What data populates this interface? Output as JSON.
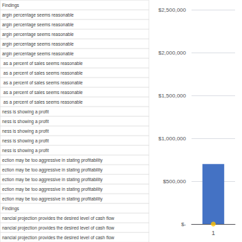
{
  "chart_data": {
    "type": "bar",
    "categories": [
      "1"
    ],
    "series": [
      {
        "type": "bar",
        "color": "#4472C4",
        "values": [
          700000
        ]
      },
      {
        "type": "scatter",
        "color": "#FFC000",
        "values": [
          0
        ]
      }
    ],
    "ylim": [
      0,
      2500000
    ],
    "yticks": [
      {
        "value": 0,
        "label": "$-"
      },
      {
        "value": 500000,
        "label": "$500,000"
      },
      {
        "value": 1000000,
        "label": "$1,000,000"
      },
      {
        "value": 1500000,
        "label": "$1,500,000"
      },
      {
        "value": 2000000,
        "label": "$2,000,000"
      },
      {
        "value": 2500000,
        "label": "$2,500,000"
      }
    ],
    "grid": true,
    "annotations": [
      "Findings",
      "argin percentage seems reasonable",
      "argin percentage seems reasonable",
      "argin percentage seems reasonable",
      "argin percentage seems reasonable",
      "argin percentage seems reasonable",
      " as a percent of sales seems reasonable",
      " as a percent of sales seems reasonable",
      " as a percent of sales seems reasonable",
      " as a percent of sales seems reasonable",
      " as a percent of sales seems reasonable",
      "ness is showing a profit",
      "ness is showing a profit",
      "ness is showing a profit",
      "ness is showing a profit",
      "ness is showing a profit",
      "ection may be too aggressive in stating profitability",
      "ection may be too aggressive in stating profitability",
      "ection may be too aggressive in stating profitability",
      "ection may be too aggressive in stating profitability",
      "ection may be too aggressive in stating profitability",
      "Findings",
      "nancial projection provides the desired level of cash flow",
      "nancial projection provides the desired level of cash flow",
      "nancial projection provides the desired level of cash flow"
    ]
  }
}
